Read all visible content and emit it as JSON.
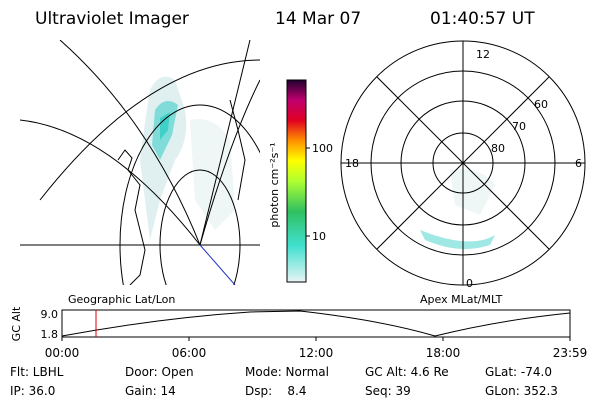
{
  "header": {
    "title": "Ultraviolet Imager",
    "date": "14 Mar 07",
    "time": "01:40:57 UT"
  },
  "colorbar": {
    "label": "photon cm⁻²s⁻¹",
    "ticks": [
      "100",
      "10"
    ]
  },
  "polar": {
    "top": "12",
    "bottom": "0",
    "left": "18",
    "right": "6",
    "rings": [
      "60",
      "70",
      "80"
    ]
  },
  "strip": {
    "left_title": "Geographic Lat/Lon",
    "right_title": "Apex MLat/MLT",
    "axis_label": "GC Alt",
    "y_labels": [
      "9.0",
      "1.8"
    ],
    "times": [
      "00:00",
      "06:00",
      "12:00",
      "18:00",
      "23:59"
    ]
  },
  "info": [
    [
      "Flt: LBHL",
      "Door: Open",
      "Mode: Normal",
      "GC Alt: 4.6 Re",
      "GLat: -74.0"
    ],
    [
      "IP: 36.0",
      "Gain: 14",
      "Dsp:    8.4",
      "Seq: 39",
      "GLon: 352.3"
    ]
  ]
}
